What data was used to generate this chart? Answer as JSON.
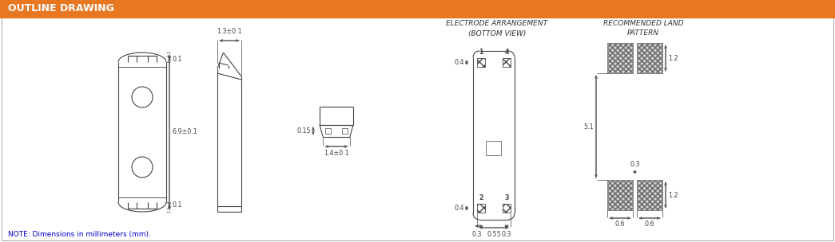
{
  "title": "OUTLINE DRAWING",
  "title_bg": "#E87722",
  "title_color": "white",
  "bg_color": "white",
  "line_color": "#444444",
  "dim_color": "#444444",
  "note": "NOTE: Dimensions in millimeters (mm).",
  "note_color": "#0000CC",
  "header1": "ELECTRODE ARRANGEMENT",
  "header1b": "(BOTTOM VIEW)",
  "header2": "RECOMMENDED LAND",
  "header2b": "PATTERN",
  "header_color": "#333333",
  "fig_w": 10.45,
  "fig_h": 3.04,
  "dpi": 100
}
